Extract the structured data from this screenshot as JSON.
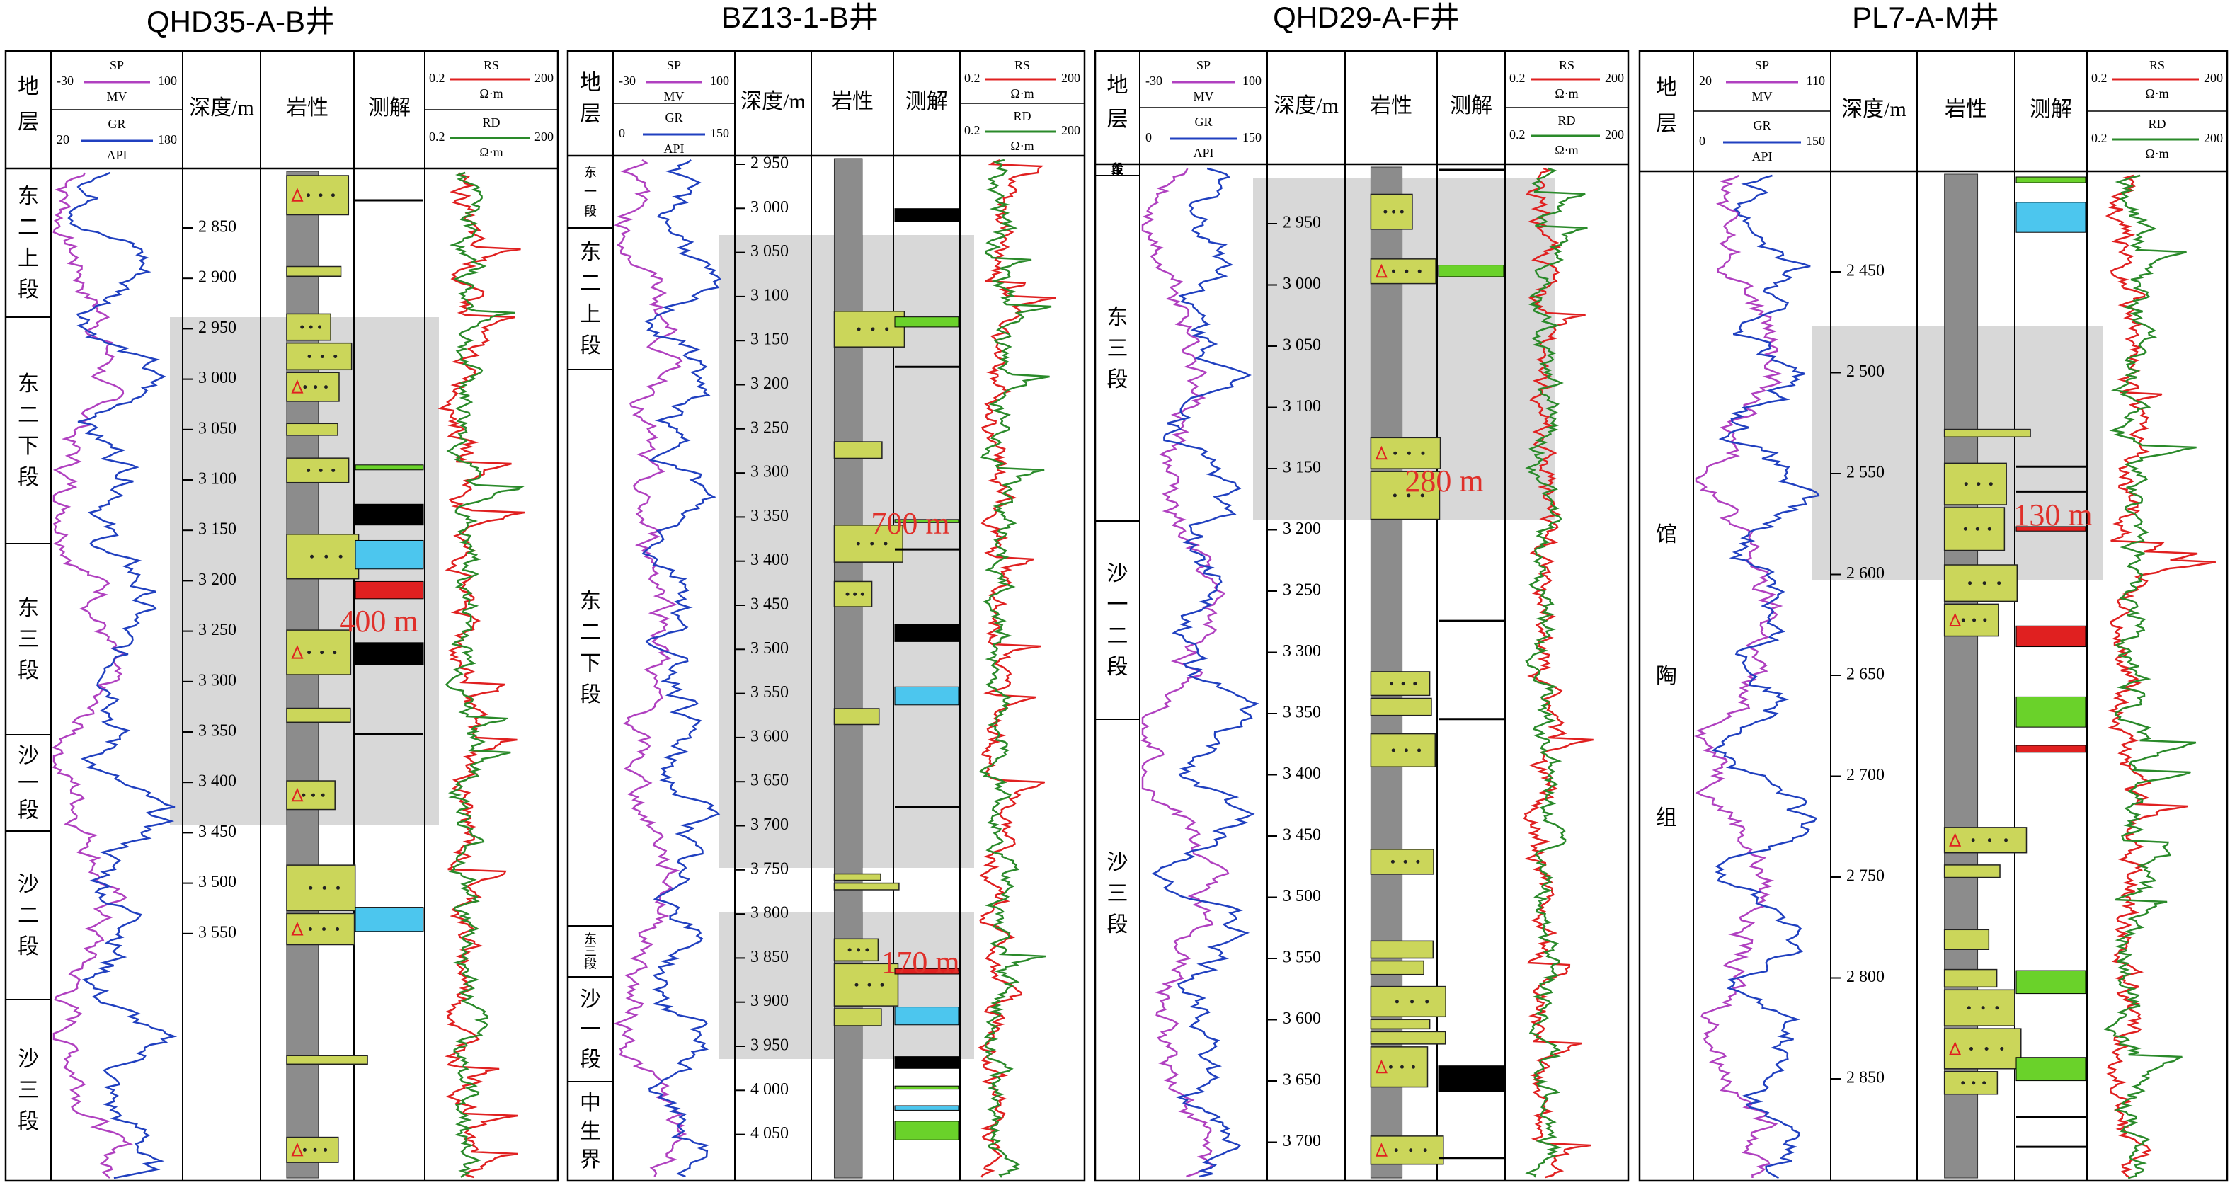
{
  "colors": {
    "sp": "#b040c0",
    "gr": "#2040c0",
    "rs": "#e02020",
    "rd": "#2a8a2a",
    "shade": "#d8d8d8",
    "lith_sand": "#cbd65a",
    "lith_mud": "#8c8c8c",
    "water": "#4cc6ee",
    "oil": "#e02020",
    "gas": "#6ad22a"
  },
  "header": {
    "strata": "地层",
    "depth": "深度/m",
    "lith": "岩性",
    "interp": "测解",
    "sp": "SP",
    "mv": "MV",
    "gr": "GR",
    "api": "API",
    "rs": "RS",
    "rd": "RD",
    "ohm": "Ω·m",
    "rs_min": "0.2",
    "rs_max": "200",
    "rd_min": "0.2",
    "rd_max": "200"
  },
  "wells": [
    {
      "title": "QHD35-A-B井",
      "sp_min": "-30",
      "sp_max": "100",
      "gr_min": "20",
      "gr_max": "180",
      "depths": [
        "2 850",
        "2 900",
        "2 950",
        "3 000",
        "3 050",
        "3 100",
        "3 150",
        "3 200",
        "3 250",
        "3 300",
        "3 350",
        "3 400",
        "3 450",
        "3 500",
        "3 550"
      ],
      "strata": [
        {
          "text": "东二上段",
          "vertical": true
        },
        {
          "text": "东二下段",
          "vertical": true
        },
        {
          "text": "东三段",
          "vertical": true
        },
        {
          "text": "沙一段",
          "vertical": true
        },
        {
          "text": "沙二段",
          "vertical": true
        },
        {
          "text": "沙三段",
          "vertical": true
        }
      ],
      "annotation": "400 m"
    },
    {
      "title": "BZ13-1-B井",
      "sp_min": "-30",
      "sp_max": "100",
      "gr_min": "0",
      "gr_max": "150",
      "depths": [
        "2 950",
        "3 000",
        "3 050",
        "3 100",
        "3 150",
        "3 200",
        "3 250",
        "3 300",
        "3 350",
        "3 400",
        "3 450",
        "3 500",
        "3 550",
        "3 600",
        "3 650",
        "3 700",
        "3 750",
        "3 800",
        "3 850",
        "3 900",
        "3 950",
        "4 000",
        "4 050"
      ],
      "strata": [
        {
          "text": "东一段"
        },
        {
          "text": "东二上段"
        },
        {
          "text": "东二下段"
        },
        {
          "text": "东三段"
        },
        {
          "text": "沙一段"
        },
        {
          "text": "中生界"
        }
      ],
      "annotations": [
        "700 m",
        "170 m"
      ]
    },
    {
      "title": "QHD29-A-F井",
      "sp_min": "-30",
      "sp_max": "100",
      "gr_min": "0",
      "gr_max": "150",
      "depths": [
        "2 950",
        "3 000",
        "3 050",
        "3 100",
        "3 150",
        "3 200",
        "3 250",
        "3 300",
        "3 350",
        "3 400",
        "3 450",
        "3 500",
        "3 550",
        "3 600",
        "3 650",
        "3 700"
      ],
      "strata": [
        {
          "text": "东二下段"
        },
        {
          "text": "东三段"
        },
        {
          "text": "沙一二段"
        },
        {
          "text": "沙三段"
        }
      ],
      "annotation": "280 m"
    },
    {
      "title": "PL7-A-M井",
      "sp_min": "20",
      "sp_max": "110",
      "gr_min": "0",
      "gr_max": "150",
      "depths": [
        "2 450",
        "2 500",
        "2 550",
        "2 600",
        "2 650",
        "2 700",
        "2 750",
        "2 800",
        "2 850"
      ],
      "strata": [
        {
          "text": "馆陶组"
        }
      ],
      "annotation": "130 m"
    }
  ]
}
